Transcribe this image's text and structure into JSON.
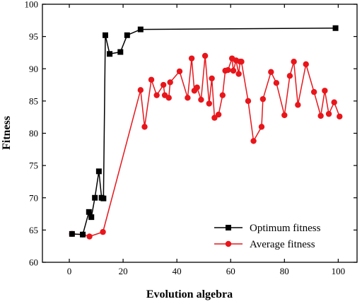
{
  "chart_data": {
    "type": "line",
    "title": "",
    "xlabel": "Evolution algebra",
    "ylabel": "Fitness",
    "xlim": [
      -10,
      107
    ],
    "ylim": [
      60,
      100
    ],
    "xticks": [
      0,
      20,
      40,
      60,
      80,
      100
    ],
    "yticks": [
      60,
      65,
      70,
      75,
      80,
      85,
      90,
      95,
      100
    ],
    "xtick_labels": [
      "0",
      "20",
      "40",
      "60",
      "80",
      "100"
    ],
    "ytick_labels": [
      "60",
      "65",
      "70",
      "75",
      "80",
      "85",
      "90",
      "95",
      "100"
    ],
    "grid": false,
    "legend_position": "bottom-right",
    "series": [
      {
        "name": "Optimum fitness",
        "color": "#000000",
        "marker": "square",
        "x": [
          1,
          5,
          7.3,
          8.2,
          9.5,
          11,
          12,
          12.7,
          13.4,
          15,
          19,
          21.5,
          26.5,
          99
        ],
        "y": [
          64.4,
          64.3,
          67.8,
          67.0,
          70.0,
          74.1,
          70.0,
          69.9,
          95.2,
          92.3,
          92.6,
          95.2,
          96.1,
          96.3
        ]
      },
      {
        "name": "Average fitness",
        "color": "#e8161b",
        "marker": "circle",
        "x": [
          1,
          5,
          7.5,
          12.5,
          26.5,
          28,
          30.5,
          32.5,
          35,
          35.5,
          37,
          37.5,
          41,
          44,
          45.5,
          46.5,
          47.5,
          49,
          50.5,
          52,
          53,
          54,
          55.5,
          57,
          58,
          59,
          60.5,
          61,
          62,
          63,
          63.5,
          64,
          66.5,
          68.5,
          71.5,
          72,
          75,
          77,
          80,
          82,
          83.5,
          85,
          88,
          91,
          93.5,
          95,
          96.5,
          98.5,
          100.5
        ],
        "y": [
          64.4,
          64.3,
          64.0,
          64.7,
          86.7,
          81.0,
          88.3,
          85.9,
          87.5,
          85.9,
          85.5,
          87.9,
          89.6,
          85.5,
          91.6,
          86.6,
          87.1,
          85.2,
          92.0,
          84.6,
          88.5,
          82.4,
          82.9,
          85.9,
          89.7,
          89.8,
          91.6,
          89.7,
          91.3,
          89.2,
          91.1,
          91.1,
          85.0,
          78.8,
          81.0,
          85.3,
          89.5,
          87.8,
          82.8,
          88.9,
          91.1,
          84.4,
          90.7,
          86.4,
          82.7,
          86.6,
          83.0,
          84.8,
          82.6
        ]
      }
    ]
  }
}
